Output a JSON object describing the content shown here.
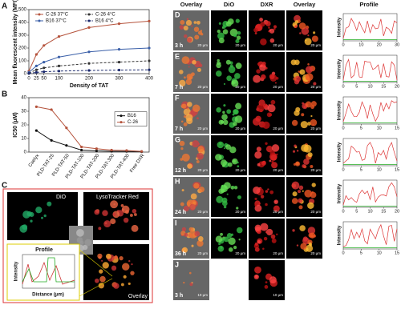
{
  "chart_data": [
    {
      "type": "line",
      "panel": "A",
      "xlabel": "Density of TAT",
      "ylabel": "Mean fluorescent intensity (MFI)",
      "x": [
        0,
        25,
        50,
        100,
        200,
        300,
        400
      ],
      "xlim": [
        0,
        400
      ],
      "xticks": [
        0,
        25,
        50,
        100,
        200,
        300,
        400
      ],
      "ylim": [
        0,
        500
      ],
      "yticks": [
        0,
        100,
        200,
        300,
        400,
        500
      ],
      "legend": "top",
      "series": [
        {
          "name": "C-26 37°C",
          "color": "#b5533c",
          "dashed": false,
          "values": [
            20,
            150,
            220,
            290,
            360,
            390,
            410
          ]
        },
        {
          "name": "C-26 4°C",
          "color": "#333333",
          "dashed": true,
          "values": [
            5,
            30,
            45,
            60,
            80,
            90,
            100
          ]
        },
        {
          "name": "B16 37°C",
          "color": "#3a5fa8",
          "dashed": false,
          "values": [
            10,
            60,
            90,
            130,
            170,
            190,
            200
          ]
        },
        {
          "name": "B16 4°C",
          "color": "#1c2a6e",
          "dashed": true,
          "values": [
            2,
            10,
            15,
            20,
            25,
            28,
            30
          ]
        }
      ]
    },
    {
      "type": "line",
      "panel": "B",
      "ylabel": "IC50 (μM)",
      "categories": [
        "Caelyx",
        "PLD-TAT-25",
        "PLD-TAT-50",
        "PLD-TAT-100",
        "PLD-TAT-200",
        "PLD-TAT-300",
        "PLD-TAT-400",
        "Free DXR"
      ],
      "ylim": [
        0,
        40
      ],
      "yticks": [
        0,
        10,
        20,
        30,
        40
      ],
      "legend": "right",
      "series": [
        {
          "name": "B16",
          "color": "#111111",
          "dashed": false,
          "values": [
            15.8,
            8.6,
            4.9,
            1.5,
            0.9,
            0.6,
            0.5,
            0.3
          ]
        },
        {
          "name": "C-26",
          "color": "#b5533c",
          "dashed": false,
          "values": [
            33.3,
            31.2,
            17.8,
            3.8,
            2.5,
            1.5,
            1.2,
            0.5
          ]
        }
      ]
    }
  ],
  "panel_c": {
    "label": "C",
    "dio": "DiO",
    "lyso": "LysoTracker Red",
    "overlay": "Overlay",
    "profile": "Profile",
    "xlabel": "Distance (μm)",
    "ylabel": "Intensity"
  },
  "panel_d": {
    "headers": [
      "Overlay",
      "DiO",
      "DXR",
      "Overlay",
      "Profile"
    ],
    "ylabel": "Intensity",
    "scale": "20 μm",
    "scale_j": "10 μm",
    "rows": [
      {
        "label": "D",
        "time": "3 h",
        "xticks": [
          0,
          10,
          20,
          30
        ]
      },
      {
        "label": "E",
        "time": "7 h",
        "xticks": [
          0,
          5,
          10,
          15,
          20
        ]
      },
      {
        "label": "F",
        "time": "7 h",
        "xticks": [
          0,
          5,
          10,
          15
        ]
      },
      {
        "label": "G",
        "time": "12 h",
        "xticks": [
          0,
          5,
          10,
          15
        ]
      },
      {
        "label": "H",
        "time": "24 h",
        "xticks": [
          0,
          5,
          10,
          15,
          20
        ]
      },
      {
        "label": "I",
        "time": "36 h",
        "xticks": [
          0,
          5,
          10,
          15
        ]
      },
      {
        "label": "J",
        "time": "3 h",
        "xticks": [
          0,
          5,
          10,
          15
        ]
      }
    ]
  }
}
